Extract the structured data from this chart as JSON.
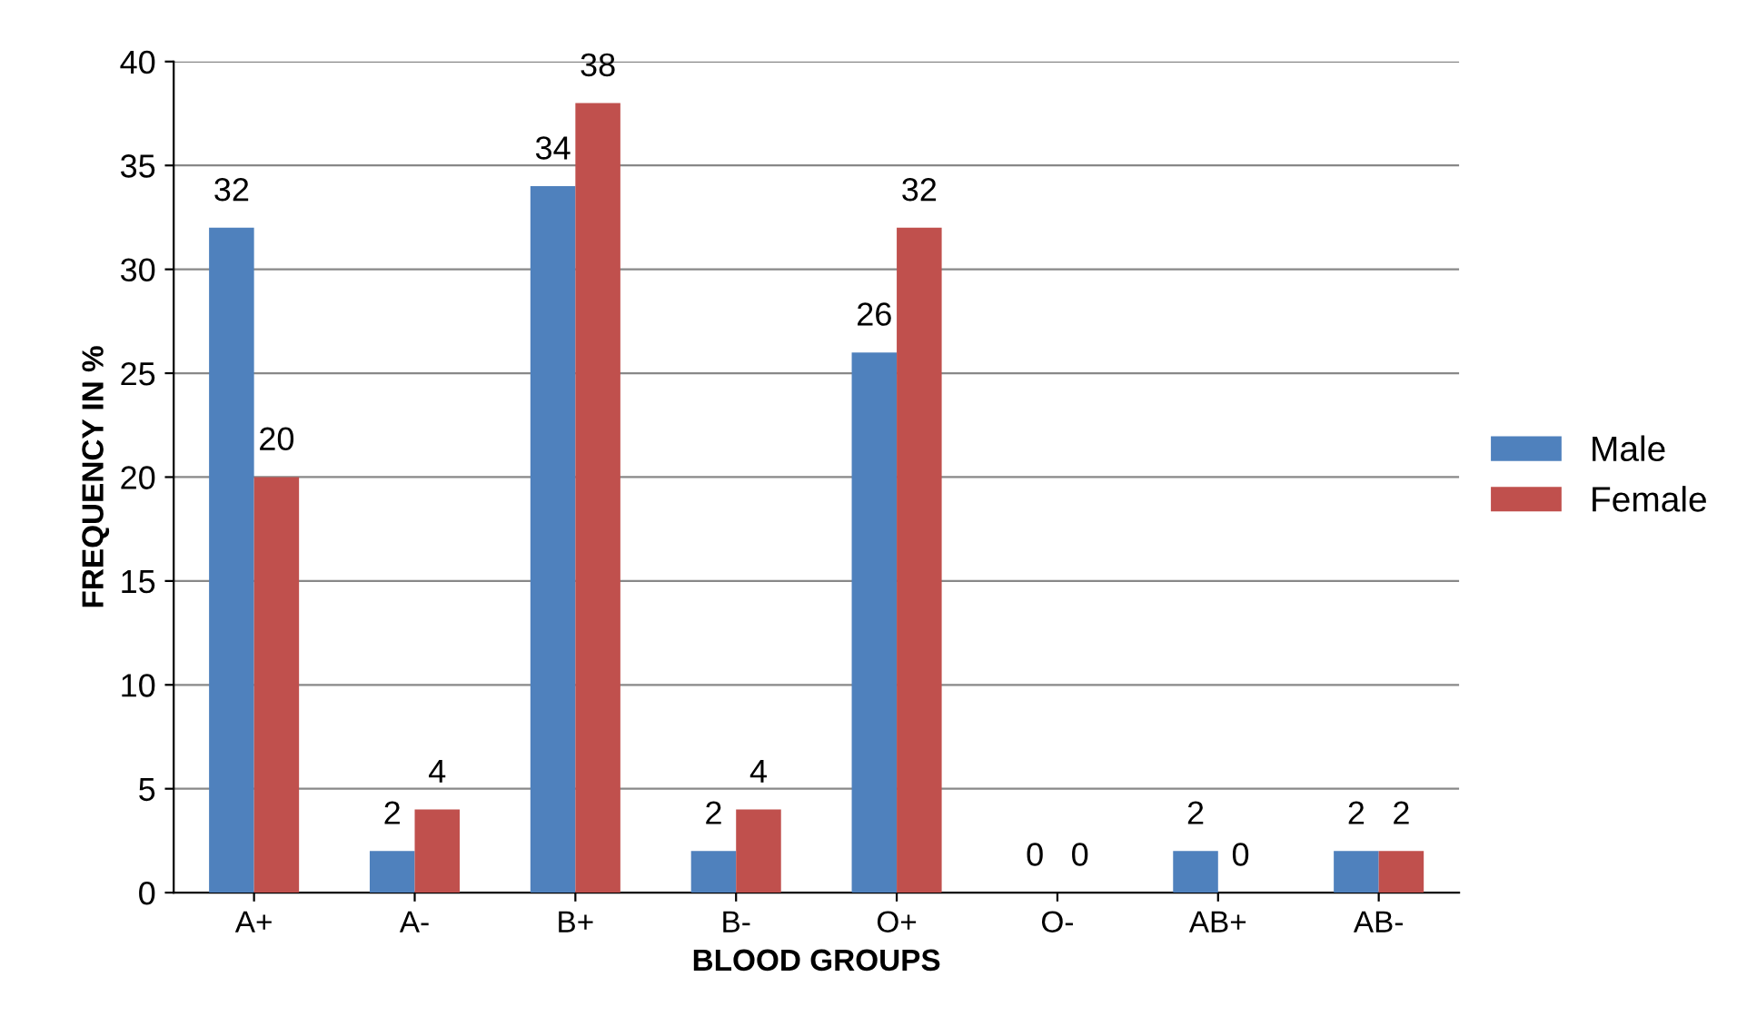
{
  "chart_data": {
    "type": "bar",
    "xlabel": "BLOOD GROUPS",
    "ylabel": "FREQUENCY IN %",
    "categories": [
      "A+",
      "A-",
      "B+",
      "B-",
      "O+",
      "O-",
      "AB+",
      "AB-"
    ],
    "series": [
      {
        "name": "Male",
        "color": "#4f81bd",
        "values": [
          32,
          2,
          34,
          2,
          26,
          0,
          2,
          2
        ]
      },
      {
        "name": "Female",
        "color": "#c0504d",
        "values": [
          20,
          4,
          38,
          4,
          32,
          0,
          0,
          2
        ]
      }
    ],
    "ylim": [
      0,
      40
    ],
    "yticks": [
      0,
      5,
      10,
      15,
      20,
      25,
      30,
      35,
      40
    ],
    "grid": "y",
    "legend": "right",
    "data_labels": true
  }
}
